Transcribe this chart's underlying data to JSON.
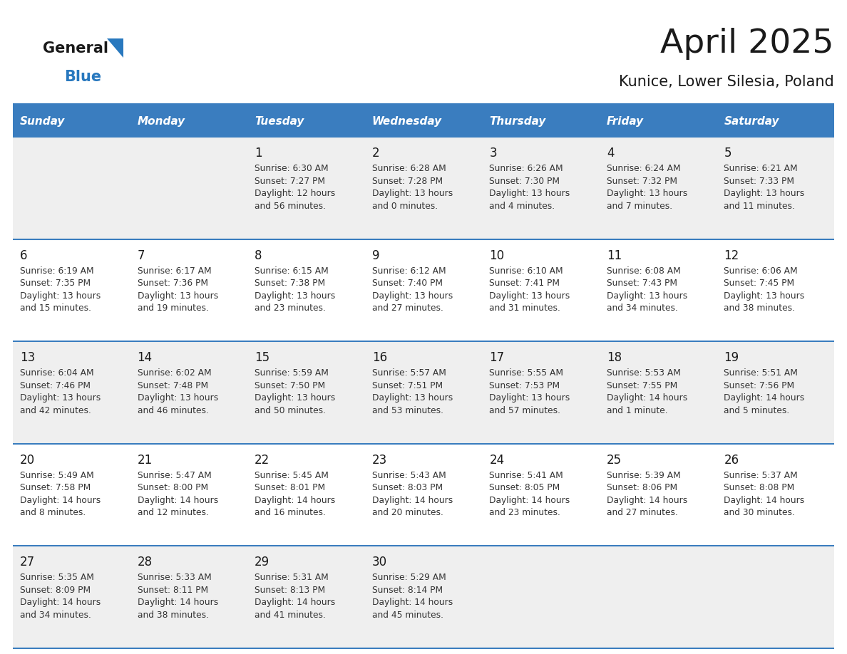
{
  "title": "April 2025",
  "subtitle": "Kunice, Lower Silesia, Poland",
  "header_bg_color": "#3a7dbf",
  "header_text_color": "#ffffff",
  "header_days": [
    "Sunday",
    "Monday",
    "Tuesday",
    "Wednesday",
    "Thursday",
    "Friday",
    "Saturday"
  ],
  "odd_row_bg": "#efefef",
  "even_row_bg": "#ffffff",
  "text_color": "#1a1a1a",
  "cell_text_color": "#333333",
  "day_number_color": "#1a1a1a",
  "separator_color": "#3a7dbf",
  "logo_general_color": "#1a1a1a",
  "logo_blue_color": "#2878be",
  "weeks": [
    {
      "days": [
        {
          "date": null,
          "text": ""
        },
        {
          "date": null,
          "text": ""
        },
        {
          "date": 1,
          "text": "Sunrise: 6:30 AM\nSunset: 7:27 PM\nDaylight: 12 hours\nand 56 minutes."
        },
        {
          "date": 2,
          "text": "Sunrise: 6:28 AM\nSunset: 7:28 PM\nDaylight: 13 hours\nand 0 minutes."
        },
        {
          "date": 3,
          "text": "Sunrise: 6:26 AM\nSunset: 7:30 PM\nDaylight: 13 hours\nand 4 minutes."
        },
        {
          "date": 4,
          "text": "Sunrise: 6:24 AM\nSunset: 7:32 PM\nDaylight: 13 hours\nand 7 minutes."
        },
        {
          "date": 5,
          "text": "Sunrise: 6:21 AM\nSunset: 7:33 PM\nDaylight: 13 hours\nand 11 minutes."
        }
      ]
    },
    {
      "days": [
        {
          "date": 6,
          "text": "Sunrise: 6:19 AM\nSunset: 7:35 PM\nDaylight: 13 hours\nand 15 minutes."
        },
        {
          "date": 7,
          "text": "Sunrise: 6:17 AM\nSunset: 7:36 PM\nDaylight: 13 hours\nand 19 minutes."
        },
        {
          "date": 8,
          "text": "Sunrise: 6:15 AM\nSunset: 7:38 PM\nDaylight: 13 hours\nand 23 minutes."
        },
        {
          "date": 9,
          "text": "Sunrise: 6:12 AM\nSunset: 7:40 PM\nDaylight: 13 hours\nand 27 minutes."
        },
        {
          "date": 10,
          "text": "Sunrise: 6:10 AM\nSunset: 7:41 PM\nDaylight: 13 hours\nand 31 minutes."
        },
        {
          "date": 11,
          "text": "Sunrise: 6:08 AM\nSunset: 7:43 PM\nDaylight: 13 hours\nand 34 minutes."
        },
        {
          "date": 12,
          "text": "Sunrise: 6:06 AM\nSunset: 7:45 PM\nDaylight: 13 hours\nand 38 minutes."
        }
      ]
    },
    {
      "days": [
        {
          "date": 13,
          "text": "Sunrise: 6:04 AM\nSunset: 7:46 PM\nDaylight: 13 hours\nand 42 minutes."
        },
        {
          "date": 14,
          "text": "Sunrise: 6:02 AM\nSunset: 7:48 PM\nDaylight: 13 hours\nand 46 minutes."
        },
        {
          "date": 15,
          "text": "Sunrise: 5:59 AM\nSunset: 7:50 PM\nDaylight: 13 hours\nand 50 minutes."
        },
        {
          "date": 16,
          "text": "Sunrise: 5:57 AM\nSunset: 7:51 PM\nDaylight: 13 hours\nand 53 minutes."
        },
        {
          "date": 17,
          "text": "Sunrise: 5:55 AM\nSunset: 7:53 PM\nDaylight: 13 hours\nand 57 minutes."
        },
        {
          "date": 18,
          "text": "Sunrise: 5:53 AM\nSunset: 7:55 PM\nDaylight: 14 hours\nand 1 minute."
        },
        {
          "date": 19,
          "text": "Sunrise: 5:51 AM\nSunset: 7:56 PM\nDaylight: 14 hours\nand 5 minutes."
        }
      ]
    },
    {
      "days": [
        {
          "date": 20,
          "text": "Sunrise: 5:49 AM\nSunset: 7:58 PM\nDaylight: 14 hours\nand 8 minutes."
        },
        {
          "date": 21,
          "text": "Sunrise: 5:47 AM\nSunset: 8:00 PM\nDaylight: 14 hours\nand 12 minutes."
        },
        {
          "date": 22,
          "text": "Sunrise: 5:45 AM\nSunset: 8:01 PM\nDaylight: 14 hours\nand 16 minutes."
        },
        {
          "date": 23,
          "text": "Sunrise: 5:43 AM\nSunset: 8:03 PM\nDaylight: 14 hours\nand 20 minutes."
        },
        {
          "date": 24,
          "text": "Sunrise: 5:41 AM\nSunset: 8:05 PM\nDaylight: 14 hours\nand 23 minutes."
        },
        {
          "date": 25,
          "text": "Sunrise: 5:39 AM\nSunset: 8:06 PM\nDaylight: 14 hours\nand 27 minutes."
        },
        {
          "date": 26,
          "text": "Sunrise: 5:37 AM\nSunset: 8:08 PM\nDaylight: 14 hours\nand 30 minutes."
        }
      ]
    },
    {
      "days": [
        {
          "date": 27,
          "text": "Sunrise: 5:35 AM\nSunset: 8:09 PM\nDaylight: 14 hours\nand 34 minutes."
        },
        {
          "date": 28,
          "text": "Sunrise: 5:33 AM\nSunset: 8:11 PM\nDaylight: 14 hours\nand 38 minutes."
        },
        {
          "date": 29,
          "text": "Sunrise: 5:31 AM\nSunset: 8:13 PM\nDaylight: 14 hours\nand 41 minutes."
        },
        {
          "date": 30,
          "text": "Sunrise: 5:29 AM\nSunset: 8:14 PM\nDaylight: 14 hours\nand 45 minutes."
        },
        {
          "date": null,
          "text": ""
        },
        {
          "date": null,
          "text": ""
        },
        {
          "date": null,
          "text": ""
        }
      ]
    }
  ]
}
